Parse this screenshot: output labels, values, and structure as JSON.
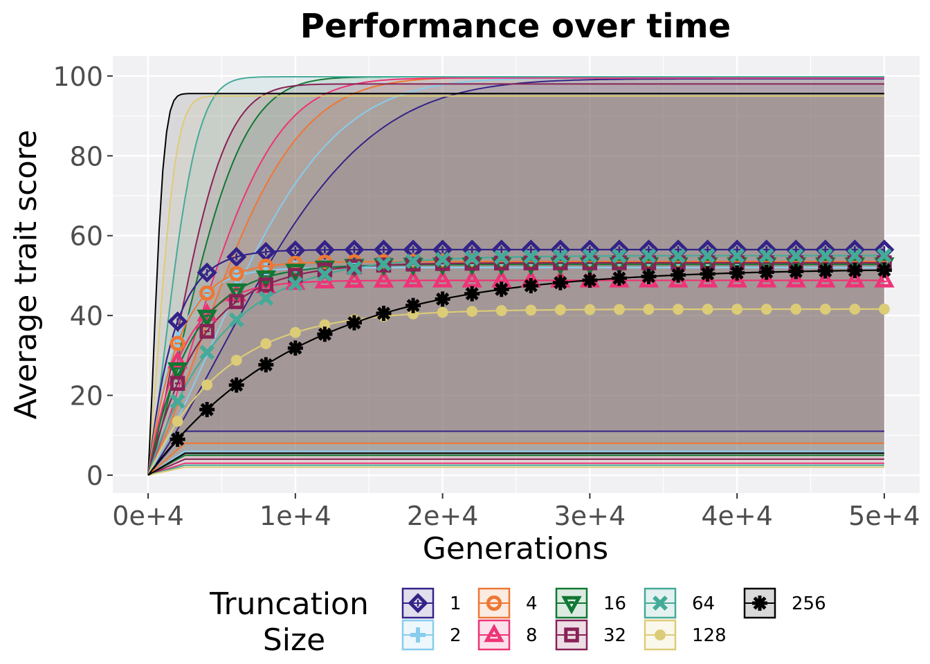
{
  "chart_data": {
    "type": "line",
    "title": "Performance over time",
    "xlabel": "Generations",
    "ylabel": "Average trait score",
    "xlim": [
      -2400,
      52400
    ],
    "ylim": [
      -4.5,
      105
    ],
    "x_ticks": [
      0,
      10000,
      20000,
      30000,
      40000,
      50000
    ],
    "x_tick_labels": [
      "0e+4",
      "1e+4",
      "2e+4",
      "3e+4",
      "4e+4",
      "5e+4"
    ],
    "y_ticks": [
      0,
      20,
      40,
      60,
      80,
      100
    ],
    "y_tick_labels": [
      "0",
      "20",
      "40",
      "60",
      "80",
      "100"
    ],
    "grid": true,
    "legend": {
      "title_lines": [
        "Truncation",
        "Size"
      ],
      "position": "bottom"
    },
    "marker_x": [
      2000,
      4000,
      6000,
      8000,
      10000,
      12000,
      14000,
      16000,
      18000,
      20000,
      22000,
      24000,
      26000,
      28000,
      30000,
      32000,
      34000,
      36000,
      38000,
      40000,
      42000,
      44000,
      46000,
      48000,
      50000
    ],
    "series": [
      {
        "name": "1",
        "color": "#332288",
        "marker": "diamond",
        "mean_plateau": 56.5,
        "mean_k": 0.65,
        "mean_at_2000": 38.5,
        "ribbon_low": 11,
        "ribbon_high": 99.3,
        "ribbon_k": 1.55,
        "ribbon_hi_at_2000": 35
      },
      {
        "name": "2",
        "color": "#88CCEE",
        "marker": "plus",
        "mean_plateau": 52.0,
        "mean_k": 0.55,
        "mean_at_2000": 34,
        "ribbon_low": 6,
        "ribbon_high": 99.5,
        "ribbon_k": 1.3,
        "ribbon_hi_at_2000": 34
      },
      {
        "name": "4",
        "color": "#EE7733",
        "marker": "circle-open",
        "mean_plateau": 53.5,
        "mean_k": 0.62,
        "mean_at_2000": 33,
        "ribbon_low": 8,
        "ribbon_high": 99.7,
        "ribbon_k": 1.05,
        "ribbon_hi_at_2000": 30
      },
      {
        "name": "8",
        "color": "#EE3377",
        "marker": "triangle",
        "mean_plateau": 48.8,
        "mean_k": 0.55,
        "mean_at_2000": 28.5,
        "ribbon_low": 3,
        "ribbon_high": 99.5,
        "ribbon_k": 0.9,
        "ribbon_hi_at_2000": 28
      },
      {
        "name": "16",
        "color": "#117733",
        "marker": "triangle-down",
        "mean_plateau": 52.8,
        "mean_k": 0.48,
        "mean_at_2000": 26.5,
        "ribbon_low": 5,
        "ribbon_high": 99.8,
        "ribbon_k": 0.68,
        "ribbon_hi_at_2000": 26
      },
      {
        "name": "32",
        "color": "#882255",
        "marker": "square-open",
        "mean_plateau": 53.2,
        "mean_k": 0.4,
        "mean_at_2000": 23,
        "ribbon_low": 4,
        "ribbon_high": 98,
        "ribbon_k": 0.55,
        "ribbon_hi_at_2000": 24
      },
      {
        "name": "64",
        "color": "#44AA99",
        "marker": "x",
        "mean_plateau": 55.0,
        "mean_k": 0.3,
        "mean_at_2000": 18.5,
        "ribbon_low": 2.5,
        "ribbon_high": 99.8,
        "ribbon_k": 0.35,
        "ribbon_hi_at_2000": 20
      },
      {
        "name": "128",
        "color": "#DDCC77",
        "marker": "circle",
        "mean_plateau": 41.6,
        "mean_k": 0.26,
        "mean_at_2000": 13.5,
        "ribbon_low": 2,
        "ribbon_high": 95,
        "ribbon_k": 0.2,
        "ribbon_hi_at_2000": 14
      },
      {
        "name": "256",
        "color": "#000000",
        "marker": "asterisk",
        "mean_plateau": 51.8,
        "mean_k": 0.135,
        "mean_at_2000": 9,
        "ribbon_low": 5.5,
        "ribbon_high": 95.6,
        "ribbon_k": 0.115,
        "ribbon_hi_at_2000": 10
      }
    ]
  }
}
